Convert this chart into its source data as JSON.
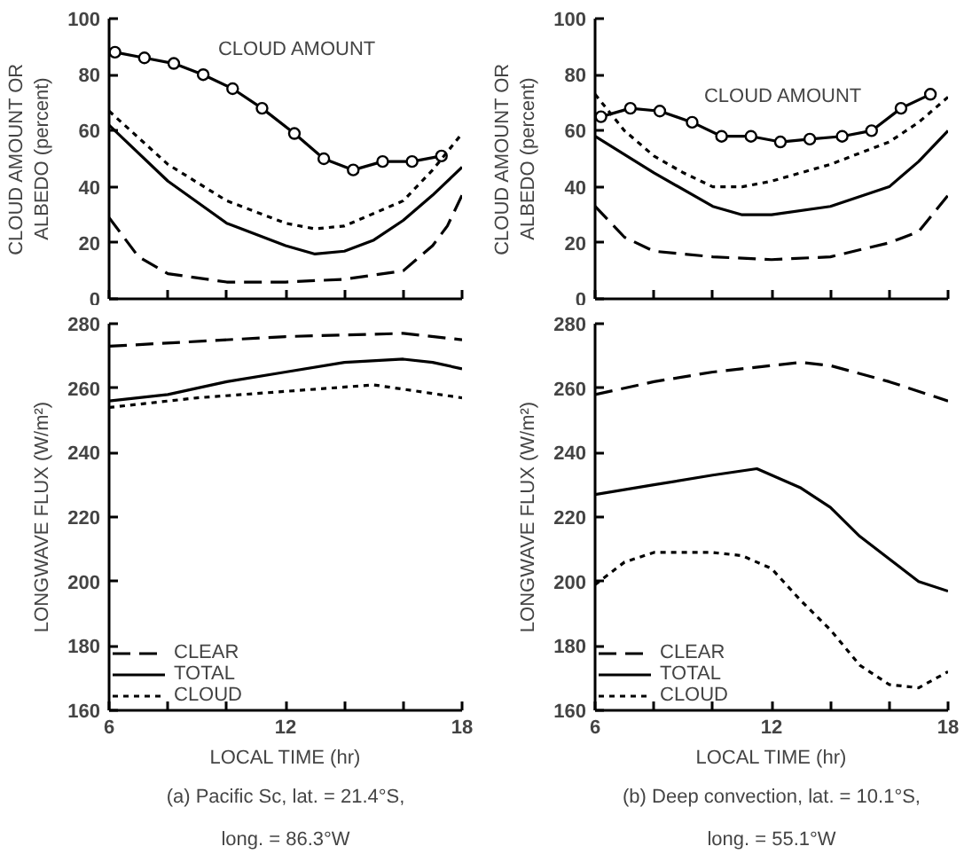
{
  "chart_data": [
    {
      "type": "line",
      "ylabel": "CLOUD AMOUNT OR\nALBEDO (percent)",
      "xlim": [
        6,
        18
      ],
      "ylim": [
        0,
        100
      ],
      "xticks": [
        {
          "value": 6,
          "label": null
        },
        {
          "value": 8,
          "label": null
        },
        {
          "value": 10,
          "label": null
        },
        {
          "value": 12,
          "label": null
        },
        {
          "value": 14,
          "label": null
        },
        {
          "value": 16,
          "label": null
        },
        {
          "value": 18,
          "label": null
        }
      ],
      "yticks": [
        0,
        20,
        40,
        60,
        80,
        100
      ],
      "tick_labels": "y",
      "grid": false,
      "legend": false,
      "series": [
        {
          "name": "CLOUD AMOUNT",
          "color": "#000000",
          "marker": "circle",
          "line_style": "solid",
          "x": [
            6.2,
            7.2,
            8.2,
            9.2,
            10.2,
            11.2,
            12.3,
            13.3,
            14.3,
            15.3,
            16.3,
            17.3
          ],
          "values": [
            88,
            86,
            84,
            80,
            75,
            68,
            59,
            50,
            46,
            49,
            49,
            51
          ]
        },
        {
          "color": "#000000",
          "line_style": "dotted",
          "x": [
            6,
            8,
            10,
            12,
            13,
            14,
            16,
            17,
            18
          ],
          "values": [
            67,
            48,
            35,
            27,
            25,
            26,
            35,
            46,
            59
          ]
        },
        {
          "color": "#000000",
          "line_style": "solid",
          "x": [
            6,
            8,
            10,
            12,
            13,
            14,
            15,
            16,
            17,
            18
          ],
          "values": [
            62,
            42,
            27,
            19,
            16,
            17,
            21,
            28,
            37,
            47
          ]
        },
        {
          "color": "#000000",
          "line_style": "dashed",
          "x": [
            6,
            7,
            8,
            10,
            12,
            14,
            16,
            17,
            17.5,
            18
          ],
          "values": [
            29,
            15,
            9,
            6,
            6,
            7,
            10,
            19,
            26,
            37
          ]
        }
      ]
    },
    {
      "type": "line",
      "ylabel": "LONGWAVE FLUX (W/m²)",
      "xlabel": "LOCAL TIME (hr)",
      "xlim": [
        6,
        18
      ],
      "ylim": [
        160,
        280
      ],
      "xticks": [
        6,
        {
          "value": 8,
          "label": null
        },
        {
          "value": 10,
          "label": null
        },
        12,
        {
          "value": 14,
          "label": null
        },
        {
          "value": 16,
          "label": null
        },
        18
      ],
      "yticks": [
        160,
        180,
        200,
        220,
        240,
        260,
        280
      ],
      "grid": false,
      "legend": "bottom left",
      "annotations": [
        "(a) Pacific Sc, lat. = 21.4°S,",
        "long. = 86.3°W"
      ],
      "series": [
        {
          "name": "CLEAR",
          "color": "#000000",
          "line_style": "dashed",
          "x": [
            6,
            12,
            16,
            18
          ],
          "values": [
            273,
            276,
            277,
            275
          ]
        },
        {
          "name": "TOTAL",
          "color": "#000000",
          "line_style": "solid",
          "x": [
            6,
            8,
            10,
            12,
            14,
            16,
            17,
            18
          ],
          "values": [
            256,
            258,
            262,
            265,
            268,
            269,
            268,
            266
          ]
        },
        {
          "name": "CLOUD",
          "color": "#000000",
          "line_style": "dotted",
          "x": [
            6,
            9,
            12,
            15,
            18
          ],
          "values": [
            254,
            257,
            259,
            261,
            257
          ]
        }
      ]
    },
    {
      "type": "line",
      "ylabel": "CLOUD AMOUNT OR\nALBEDO (percent)",
      "xlim": [
        6,
        18
      ],
      "ylim": [
        0,
        100
      ],
      "xticks": [
        {
          "value": 6,
          "label": null
        },
        {
          "value": 8,
          "label": null
        },
        {
          "value": 10,
          "label": null
        },
        {
          "value": 12,
          "label": null
        },
        {
          "value": 14,
          "label": null
        },
        {
          "value": 16,
          "label": null
        },
        {
          "value": 18,
          "label": null
        }
      ],
      "yticks": [
        0,
        20,
        40,
        60,
        80,
        100
      ],
      "tick_labels": "y",
      "grid": false,
      "legend": false,
      "series": [
        {
          "name": "CLOUD AMOUNT",
          "color": "#000000",
          "marker": "circle",
          "line_style": "solid",
          "x": [
            6.2,
            7.2,
            8.2,
            9.3,
            10.3,
            11.3,
            12.3,
            13.3,
            14.4,
            15.4,
            16.4,
            17.4
          ],
          "values": [
            65,
            68,
            67,
            63,
            58,
            58,
            56,
            57,
            58,
            60,
            68,
            73
          ]
        },
        {
          "color": "#000000",
          "line_style": "dotted",
          "x": [
            6,
            7,
            8,
            9,
            10,
            11,
            12,
            14,
            16,
            17,
            18
          ],
          "values": [
            73,
            60,
            51,
            45,
            40,
            40,
            42,
            48,
            56,
            63,
            72
          ]
        },
        {
          "color": "#000000",
          "line_style": "solid",
          "x": [
            6,
            8,
            10,
            11,
            12,
            14,
            16,
            17,
            18
          ],
          "values": [
            58,
            45,
            33,
            30,
            30,
            33,
            40,
            49,
            60
          ]
        },
        {
          "color": "#000000",
          "line_style": "dashed",
          "x": [
            6,
            7,
            8,
            10,
            12,
            14,
            16,
            17,
            18
          ],
          "values": [
            33,
            22,
            17,
            15,
            14,
            15,
            20,
            24,
            37
          ]
        }
      ]
    },
    {
      "type": "line",
      "ylabel": "LONGWAVE FLUX (W/m²)",
      "xlabel": "LOCAL TIME (hr)",
      "xlim": [
        6,
        18
      ],
      "ylim": [
        160,
        280
      ],
      "xticks": [
        6,
        {
          "value": 8,
          "label": null
        },
        {
          "value": 10,
          "label": null
        },
        12,
        {
          "value": 14,
          "label": null
        },
        {
          "value": 16,
          "label": null
        },
        18
      ],
      "yticks": [
        160,
        180,
        200,
        220,
        240,
        260,
        280
      ],
      "grid": false,
      "legend": "bottom left",
      "annotations": [
        "(b) Deep convection, lat. = 10.1°S,",
        "long. = 55.1°W"
      ],
      "series": [
        {
          "name": "CLEAR",
          "color": "#000000",
          "line_style": "dashed",
          "x": [
            6,
            8,
            10,
            12,
            13,
            14,
            16,
            18
          ],
          "values": [
            258,
            262,
            265,
            267,
            268,
            267,
            262,
            256
          ]
        },
        {
          "name": "TOTAL",
          "color": "#000000",
          "line_style": "solid",
          "x": [
            6,
            8,
            10,
            11.5,
            13,
            14,
            15,
            16,
            17,
            18
          ],
          "values": [
            227,
            230,
            233,
            235,
            229,
            223,
            214,
            207,
            200,
            197
          ]
        },
        {
          "name": "CLOUD",
          "color": "#000000",
          "line_style": "dotted",
          "x": [
            6,
            7,
            8,
            9,
            10,
            11,
            12,
            13,
            14,
            15,
            16,
            17,
            18
          ],
          "values": [
            199,
            206,
            209,
            209,
            209,
            208,
            204,
            194,
            185,
            174,
            168,
            167,
            172
          ]
        }
      ]
    }
  ]
}
